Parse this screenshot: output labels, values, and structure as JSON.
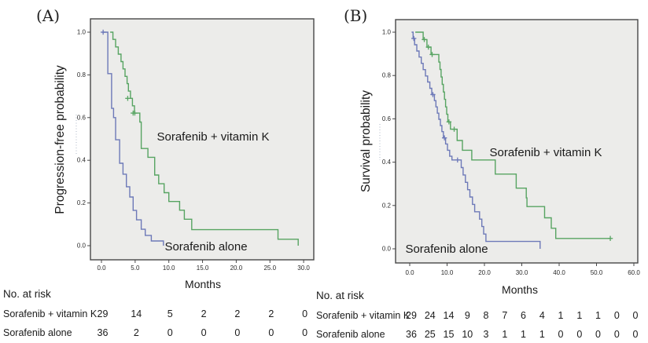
{
  "figure": {
    "description": "Two-panel Kaplan-Meier figure comparing Sorafenib + vitamin K versus Sorafenib alone"
  },
  "chart_data": [
    {
      "panel": "A",
      "panel_label": "(A)",
      "type": "line",
      "subtype": "kaplan-meier-step",
      "title": "",
      "xlabel": "Months",
      "ylabel": "Progression-free probability",
      "xlim": [
        -1.6,
        31.5
      ],
      "ylim": [
        0,
        1.05
      ],
      "grid": false,
      "plot_bg": "#ececea",
      "frame_color": "#474747",
      "xticks": [
        0,
        5,
        10,
        15,
        20,
        25,
        30
      ],
      "xtick_labels": [
        "0.0",
        "5.0",
        "10.0",
        "15.0",
        "20.0",
        "25.0",
        "30.0"
      ],
      "ytick_values": [
        0,
        0.2,
        0.4,
        0.6,
        0.8,
        1.0
      ],
      "ytick_labels": [
        "0.0",
        "0.2",
        "0.4",
        "0.6",
        "0.8",
        "1.0"
      ],
      "series": [
        {
          "name": "Sorafenib + vitamin K",
          "color": "#57a462",
          "start": [
            1.3,
            1.0
          ],
          "steps": [
            [
              1.7,
              0.966
            ],
            [
              2.1,
              0.931
            ],
            [
              2.5,
              0.897
            ],
            [
              2.9,
              0.862
            ],
            [
              3.2,
              0.828
            ],
            [
              3.5,
              0.793
            ],
            [
              3.8,
              0.759
            ],
            [
              4.0,
              0.724
            ],
            [
              4.3,
              0.69
            ],
            [
              4.6,
              0.655
            ],
            [
              4.9,
              0.621
            ],
            [
              5.7,
              0.579
            ],
            [
              5.9,
              0.455
            ],
            [
              6.9,
              0.414
            ],
            [
              7.9,
              0.331
            ],
            [
              8.5,
              0.29
            ],
            [
              9.3,
              0.248
            ],
            [
              10.0,
              0.207
            ],
            [
              11.6,
              0.166
            ],
            [
              12.3,
              0.124
            ],
            [
              13.4,
              0.075
            ],
            [
              26.2,
              0.03
            ],
            [
              29.2,
              0.0
            ]
          ],
          "end_t": 29.2,
          "censors": [
            [
              3.9,
              0.69
            ],
            [
              4.7,
              0.621
            ],
            [
              4.95,
              0.621
            ]
          ]
        },
        {
          "name": "Sorafenib alone",
          "color": "#6d79b8",
          "start": [
            0.1,
            1.0
          ],
          "steps": [
            [
              0.95,
              0.806
            ],
            [
              1.5,
              0.643
            ],
            [
              1.8,
              0.6
            ],
            [
              2.1,
              0.496
            ],
            [
              2.7,
              0.386
            ],
            [
              3.2,
              0.335
            ],
            [
              3.7,
              0.276
            ],
            [
              4.2,
              0.228
            ],
            [
              4.7,
              0.165
            ],
            [
              5.2,
              0.121
            ],
            [
              5.9,
              0.077
            ],
            [
              6.5,
              0.048
            ],
            [
              7.4,
              0.022
            ],
            [
              9.2,
              0.0
            ]
          ],
          "end_t": 9.2,
          "censors": [
            [
              0.25,
              1.0
            ]
          ]
        }
      ],
      "annotations": [
        {
          "text": "Sorafenib + vitamin K"
        },
        {
          "text": "Sorafenib alone"
        }
      ],
      "risk_table": {
        "title": "No. at risk",
        "months": [
          0,
          5,
          10,
          15,
          20,
          25,
          30
        ],
        "rows": [
          {
            "label": "Sorafenib + vitamin K",
            "counts": [
              "29",
              "14",
              "5",
              "2",
              "2",
              "2",
              "0"
            ]
          },
          {
            "label": "Sorafenib alone",
            "counts": [
              "36",
              "2",
              "0",
              "0",
              "0",
              "0",
              "0"
            ]
          }
        ]
      }
    },
    {
      "panel": "B",
      "panel_label": "(B)",
      "type": "line",
      "subtype": "kaplan-meier-step",
      "title": "",
      "xlabel": "Months",
      "ylabel": "Survival probability",
      "xlim": [
        -3.8,
        61
      ],
      "ylim": [
        0,
        1.05
      ],
      "grid": false,
      "plot_bg": "#ececea",
      "frame_color": "#474747",
      "xticks": [
        0,
        10,
        20,
        30,
        40,
        50,
        60
      ],
      "xtick_labels": [
        "0.0",
        "10.0",
        "20.0",
        "30.0",
        "40.0",
        "50.0",
        "60.0"
      ],
      "ytick_values": [
        0,
        0.2,
        0.4,
        0.6,
        0.8,
        1.0
      ],
      "ytick_labels": [
        "0.0",
        "0.2",
        "0.4",
        "0.6",
        "0.8",
        "1.0"
      ],
      "series": [
        {
          "name": "Sorafenib + vitamin K",
          "color": "#57a462",
          "start": [
            1.5,
            1.0
          ],
          "steps": [
            [
              3.6,
              0.966
            ],
            [
              4.6,
              0.931
            ],
            [
              5.7,
              0.897
            ],
            [
              7.8,
              0.862
            ],
            [
              8.1,
              0.828
            ],
            [
              8.4,
              0.793
            ],
            [
              8.7,
              0.759
            ],
            [
              9.0,
              0.724
            ],
            [
              9.3,
              0.69
            ],
            [
              9.6,
              0.655
            ],
            [
              9.9,
              0.621
            ],
            [
              10.2,
              0.586
            ],
            [
              10.9,
              0.552
            ],
            [
              12.7,
              0.5
            ],
            [
              14.1,
              0.455
            ],
            [
              16.6,
              0.41
            ],
            [
              22.9,
              0.345
            ],
            [
              28.5,
              0.28
            ],
            [
              31.2,
              0.235
            ],
            [
              31.4,
              0.195
            ],
            [
              36.1,
              0.143
            ],
            [
              37.9,
              0.095
            ],
            [
              39.1,
              0.048
            ]
          ],
          "end_t": 53.8,
          "censors": [
            [
              3.9,
              0.966
            ],
            [
              5.0,
              0.931
            ],
            [
              6.0,
              0.897
            ],
            [
              10.5,
              0.586
            ],
            [
              11.9,
              0.552
            ],
            [
              53.7,
              0.048
            ]
          ]
        },
        {
          "name": "Sorafenib alone",
          "color": "#6d79b8",
          "start": [
            0.5,
            1.0
          ],
          "steps": [
            [
              0.9,
              0.971
            ],
            [
              1.3,
              0.942
            ],
            [
              1.9,
              0.913
            ],
            [
              2.5,
              0.885
            ],
            [
              3.1,
              0.856
            ],
            [
              3.6,
              0.827
            ],
            [
              4.2,
              0.798
            ],
            [
              4.8,
              0.77
            ],
            [
              5.4,
              0.741
            ],
            [
              5.9,
              0.712
            ],
            [
              6.6,
              0.684
            ],
            [
              7.0,
              0.655
            ],
            [
              7.4,
              0.626
            ],
            [
              7.8,
              0.598
            ],
            [
              8.2,
              0.569
            ],
            [
              8.6,
              0.541
            ],
            [
              9.0,
              0.512
            ],
            [
              9.6,
              0.484
            ],
            [
              10.1,
              0.455
            ],
            [
              10.7,
              0.427
            ],
            [
              11.3,
              0.41
            ],
            [
              13.8,
              0.375
            ],
            [
              14.3,
              0.341
            ],
            [
              14.9,
              0.307
            ],
            [
              15.5,
              0.273
            ],
            [
              16.1,
              0.239
            ],
            [
              16.8,
              0.205
            ],
            [
              17.4,
              0.171
            ],
            [
              18.7,
              0.137
            ],
            [
              19.3,
              0.103
            ],
            [
              19.8,
              0.068
            ],
            [
              20.4,
              0.034
            ],
            [
              34.9,
              0.0
            ]
          ],
          "end_t": 34.9,
          "censors": [
            [
              1.1,
              0.971
            ],
            [
              6.2,
              0.712
            ],
            [
              9.3,
              0.512
            ],
            [
              12.8,
              0.41
            ]
          ]
        }
      ],
      "annotations": [
        {
          "text": "Sorafenib + vitamin K"
        },
        {
          "text": "Sorafenib alone"
        }
      ],
      "risk_table": {
        "title": "No. at risk",
        "months": [
          0,
          5,
          10,
          15,
          20,
          25,
          30,
          35,
          40,
          45,
          50,
          55,
          60
        ],
        "rows": [
          {
            "label": "Sorafenib + vitamin K",
            "counts": [
              "29",
              "24",
              "14",
              "9",
              "8",
              "7",
              "6",
              "4",
              "1",
              "1",
              "1",
              "0",
              "0"
            ]
          },
          {
            "label": "Sorafenib alone",
            "counts": [
              "36",
              "25",
              "15",
              "10",
              "3",
              "1",
              "1",
              "1",
              "0",
              "0",
              "0",
              "0",
              "0"
            ]
          }
        ]
      }
    }
  ]
}
